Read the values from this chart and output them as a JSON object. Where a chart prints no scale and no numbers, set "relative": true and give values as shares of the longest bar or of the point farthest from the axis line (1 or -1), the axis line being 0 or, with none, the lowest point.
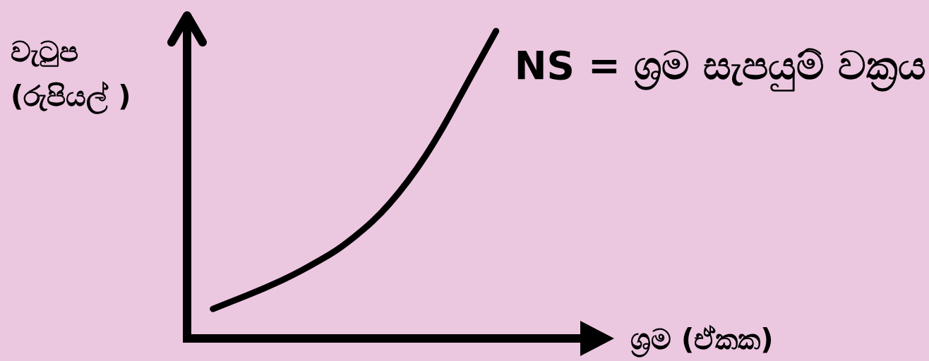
{
  "chart_data": {
    "type": "line",
    "relative": true,
    "xlabel": "ශ්‍රම (ඒකක)",
    "ylabel": "වැටුප\n(රුපියල් )",
    "categories": [
      null,
      null,
      null,
      null,
      null,
      null,
      null,
      null,
      null,
      null,
      null,
      null,
      null,
      null,
      null,
      null,
      null
    ],
    "series": [
      {
        "name": "NS = ශ්‍රම සැපයුම් වක්‍රය",
        "color": "#000000",
        "values": [
          0.096,
          0.119,
          0.142,
          0.166,
          0.192,
          0.221,
          0.253,
          0.288,
          0.331,
          0.38,
          0.44,
          0.511,
          0.593,
          0.687,
          0.791,
          0.896,
          1.0
        ]
      }
    ]
  }
}
